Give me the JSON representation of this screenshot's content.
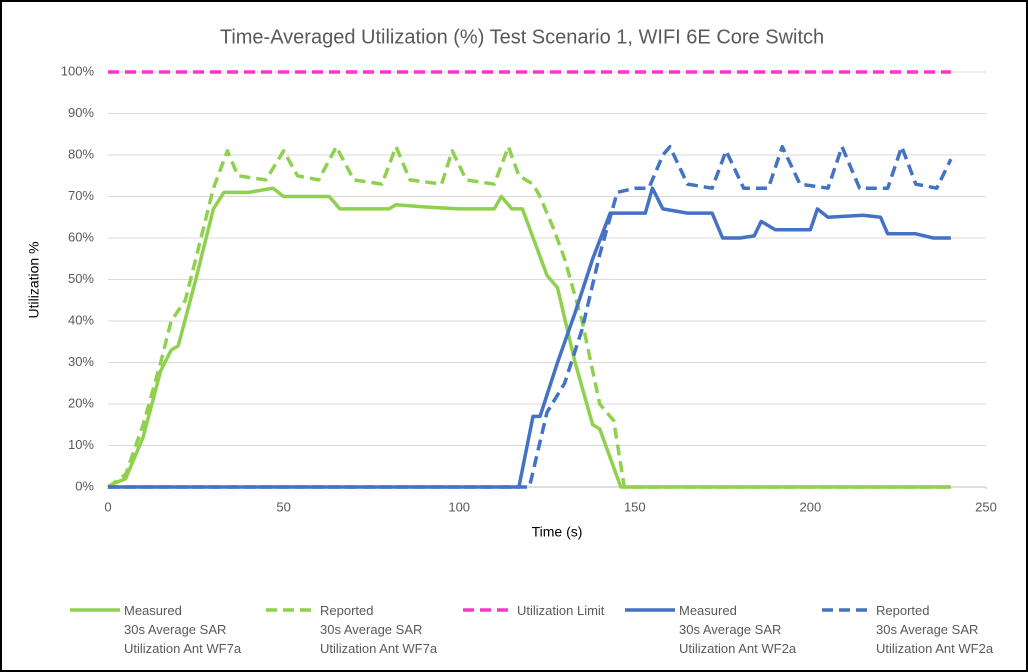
{
  "chart_data": {
    "type": "line",
    "title": "Time-Averaged Utilization (%) Test Scenario 1, WIFI 6E Core Switch",
    "x_label": "Time (s)",
    "y_label": "Utilization %",
    "xlim": [
      0,
      250
    ],
    "xticks": [
      0,
      50,
      100,
      150,
      200,
      250
    ],
    "ylim": [
      0,
      100
    ],
    "yticks": [
      {
        "value": 0,
        "label": "0%"
      },
      {
        "value": 10,
        "label": "10%"
      },
      {
        "value": 20,
        "label": "20%"
      },
      {
        "value": 30,
        "label": "30%"
      },
      {
        "value": 40,
        "label": "40%"
      },
      {
        "value": 50,
        "label": "50%"
      },
      {
        "value": 60,
        "label": "60%"
      },
      {
        "value": 70,
        "label": "70%"
      },
      {
        "value": 80,
        "label": "80%"
      },
      {
        "value": 90,
        "label": "90%"
      },
      {
        "value": 100,
        "label": "100%"
      }
    ],
    "grid": true,
    "legend": "bottom",
    "series": [
      {
        "name": "Measured\n30s Average SAR\nUtilization Ant WF7a",
        "color": "#8fd14f",
        "dashed": false,
        "x": [
          0,
          2,
          5,
          10,
          15,
          18,
          20,
          25,
          30,
          33,
          40,
          47,
          50,
          60,
          63,
          66,
          75,
          80,
          82,
          90,
          100,
          110,
          112,
          115,
          118,
          125,
          128,
          133,
          138,
          140,
          146,
          240
        ],
        "values": [
          0,
          1,
          2,
          12,
          28,
          33,
          34,
          50,
          67,
          71,
          71,
          72,
          70,
          70,
          70,
          67,
          67,
          67,
          68,
          67.5,
          67,
          67,
          70,
          67,
          67,
          51,
          48,
          30,
          15,
          14,
          0,
          0
        ]
      },
      {
        "name": "Reported\n30s Average SAR\nUtilization Ant WF7a",
        "color": "#8fd14f",
        "dashed": true,
        "x": [
          0,
          5,
          10,
          15,
          18,
          22,
          25,
          30,
          34,
          37,
          45,
          50,
          54,
          60,
          65,
          70,
          78,
          82,
          86,
          95,
          98,
          102,
          110,
          114,
          117,
          121,
          123,
          127,
          130,
          135,
          140,
          144,
          147,
          240
        ],
        "values": [
          0,
          3,
          15,
          30,
          40,
          45,
          55,
          72,
          81,
          75,
          74,
          81,
          75,
          74,
          82,
          74,
          73,
          82,
          74,
          73,
          81,
          74,
          73,
          82,
          75,
          73,
          70,
          62,
          55,
          40,
          20,
          16,
          0,
          0
        ]
      },
      {
        "name": "Utilization Limit",
        "color": "#ff33cc",
        "dashed": true,
        "x": [
          0,
          240
        ],
        "values": [
          100,
          100
        ]
      },
      {
        "name": "Measured\n30s Average SAR\nUtilization Ant WF2a",
        "color": "#4472c4",
        "dashed": false,
        "x": [
          0,
          117,
          121,
          123,
          128,
          133,
          138,
          143,
          150,
          153,
          155,
          158,
          165,
          172,
          175,
          180,
          184,
          186,
          190,
          200,
          202,
          205,
          215,
          220,
          222,
          230,
          235,
          240
        ],
        "values": [
          0,
          0,
          17,
          17,
          30,
          42,
          55,
          66,
          66,
          66,
          72,
          67,
          66,
          66,
          60,
          60,
          60.5,
          64,
          62,
          62,
          67,
          65,
          65.5,
          65,
          61,
          61,
          60,
          60
        ]
      },
      {
        "name": "Reported\n30s Average SAR\nUtilization Ant WF2a",
        "color": "#4472c4",
        "dashed": true,
        "x": [
          0,
          120,
          125,
          130,
          135,
          140,
          145,
          150,
          154,
          158,
          160,
          165,
          172,
          176,
          181,
          188,
          192,
          197,
          205,
          209,
          214,
          222,
          226,
          230,
          236,
          240
        ],
        "values": [
          0,
          0,
          18,
          25,
          38,
          56,
          71,
          72,
          72,
          80,
          82,
          73,
          72,
          81,
          72,
          72,
          82,
          73,
          72,
          82,
          72,
          72,
          82,
          73,
          72,
          79
        ]
      }
    ]
  }
}
